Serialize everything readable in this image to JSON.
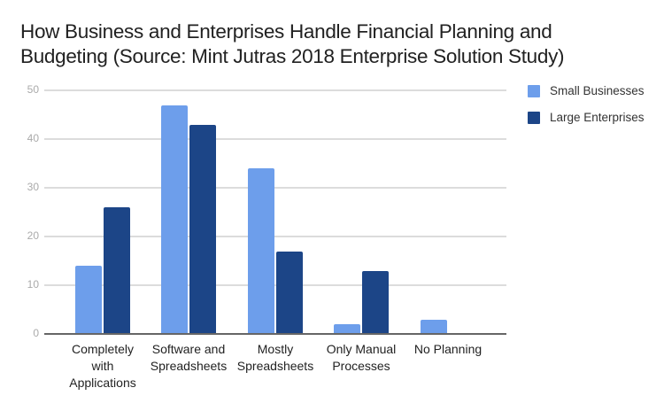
{
  "chart": {
    "title_lines": [
      "How Business and Enterprises Handle Financial Planning and",
      "Budgeting (Source: Mint Jutras 2018 Enterprise Solution Study)"
    ],
    "legend": [
      {
        "label": "Small Businesses",
        "color": "#6d9eeb"
      },
      {
        "label": "Large Enterprises",
        "color": "#1c4587"
      }
    ],
    "y_ticks": [
      "0",
      "10",
      "20",
      "30",
      "40",
      "50"
    ],
    "categories": [
      [
        "Completely",
        "with",
        "Applications"
      ],
      [
        "Software and",
        "Spreadsheets"
      ],
      [
        "Mostly",
        "Spreadsheets"
      ],
      [
        "Only Manual",
        "Processes"
      ],
      [
        "No Planning"
      ]
    ]
  },
  "chart_data": {
    "type": "bar",
    "title": "How Business and Enterprises Handle Financial Planning and Budgeting (Source: Mint Jutras 2018 Enterprise Solution Study)",
    "categories": [
      "Completely with Applications",
      "Software and Spreadsheets",
      "Mostly Spreadsheets",
      "Only Manual Processes",
      "No Planning"
    ],
    "series": [
      {
        "name": "Small Businesses",
        "color": "#6d9eeb",
        "values": [
          14,
          47,
          34,
          2,
          3
        ]
      },
      {
        "name": "Large Enterprises",
        "color": "#1c4587",
        "values": [
          26,
          43,
          17,
          13,
          0
        ]
      }
    ],
    "xlabel": "",
    "ylabel": "",
    "ylim": [
      0,
      50
    ],
    "yticks": [
      0,
      10,
      20,
      30,
      40,
      50
    ],
    "grid": true,
    "legend_position": "right"
  }
}
